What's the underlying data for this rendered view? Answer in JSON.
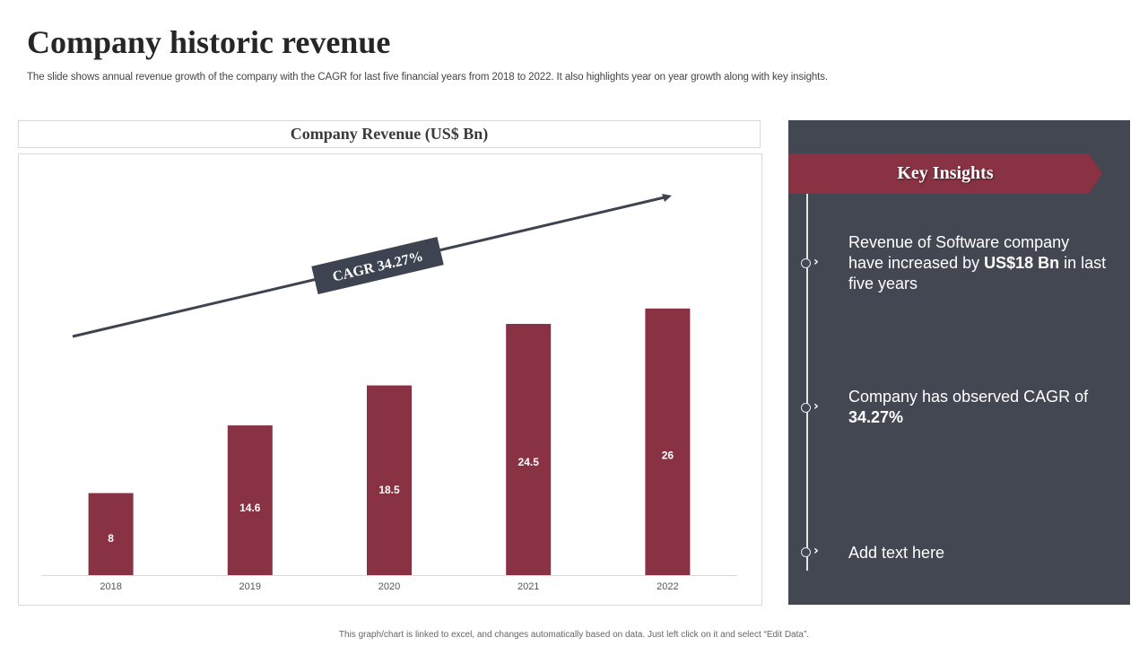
{
  "page": {
    "title": "Company historic revenue",
    "subtitle": "The slide shows annual revenue growth of the company with the CAGR for last five financial years from 2018 to 2022. It also highlights year on year growth along with key insights.",
    "footnote": "This graph/chart is linked to excel, and changes automatically based on data. Just left click on it and select “Edit Data”."
  },
  "chart_data": {
    "type": "bar",
    "title": "Company Revenue (US$ Bn)",
    "categories": [
      "2018",
      "2019",
      "2020",
      "2021",
      "2022"
    ],
    "values": [
      8,
      14.6,
      18.5,
      24.5,
      26
    ],
    "value_labels": [
      "8",
      "14.6",
      "18.5",
      "24.5",
      "26"
    ],
    "xlabel": "",
    "ylabel": "",
    "ylim": [
      0,
      35
    ],
    "grid": false,
    "bar_color": "#883244",
    "annotation": {
      "text": "CAGR 34.27%",
      "type": "trend-arrow"
    }
  },
  "insights": {
    "header": "Key Insights",
    "items": [
      {
        "pre": "Revenue of Software company have increased by ",
        "bold": "US$18 Bn",
        "post": " in last five years"
      },
      {
        "pre": "Company has observed CAGR of ",
        "bold": "34.27%",
        "post": ""
      },
      {
        "pre": "Add text here",
        "bold": "",
        "post": ""
      }
    ]
  },
  "colors": {
    "accent": "#883244",
    "panel": "#424752",
    "cagr_label_bg": "#3d4350"
  }
}
